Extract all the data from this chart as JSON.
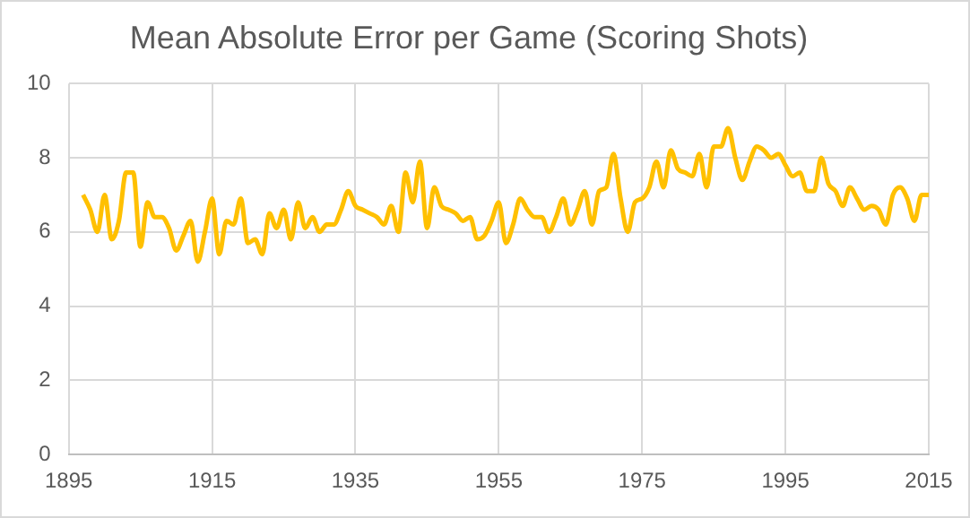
{
  "chart_data": {
    "type": "line",
    "title": "Mean Absolute Error per Game (Scoring Shots)",
    "x": [
      1897,
      1898,
      1899,
      1900,
      1901,
      1902,
      1903,
      1904,
      1905,
      1906,
      1907,
      1908,
      1909,
      1910,
      1911,
      1912,
      1913,
      1914,
      1915,
      1916,
      1917,
      1918,
      1919,
      1920,
      1921,
      1922,
      1923,
      1924,
      1925,
      1926,
      1927,
      1928,
      1929,
      1930,
      1931,
      1932,
      1933,
      1934,
      1935,
      1936,
      1937,
      1938,
      1939,
      1940,
      1941,
      1942,
      1943,
      1944,
      1945,
      1946,
      1947,
      1948,
      1949,
      1950,
      1951,
      1952,
      1953,
      1954,
      1955,
      1956,
      1957,
      1958,
      1959,
      1960,
      1961,
      1962,
      1963,
      1964,
      1965,
      1966,
      1967,
      1968,
      1969,
      1970,
      1971,
      1972,
      1973,
      1974,
      1975,
      1976,
      1977,
      1978,
      1979,
      1980,
      1981,
      1982,
      1983,
      1984,
      1985,
      1986,
      1987,
      1988,
      1989,
      1990,
      1991,
      1992,
      1993,
      1994,
      1995,
      1996,
      1997,
      1998,
      1999,
      2000,
      2001,
      2002,
      2003,
      2004,
      2005,
      2006,
      2007,
      2008,
      2009,
      2010,
      2011,
      2012,
      2013,
      2014,
      2015
    ],
    "series": [
      {
        "color": "#ffc000",
        "values": [
          7.0,
          6.6,
          6.0,
          7.0,
          5.8,
          6.3,
          7.6,
          7.6,
          5.6,
          6.8,
          6.4,
          6.4,
          6.1,
          5.5,
          5.9,
          6.3,
          5.2,
          6.0,
          6.9,
          5.4,
          6.3,
          6.2,
          6.9,
          5.7,
          5.8,
          5.4,
          6.5,
          6.1,
          6.6,
          5.8,
          6.8,
          6.1,
          6.4,
          6.0,
          6.2,
          6.2,
          6.6,
          7.1,
          6.7,
          6.6,
          6.5,
          6.4,
          6.2,
          6.7,
          6.0,
          7.6,
          6.8,
          7.9,
          6.1,
          7.2,
          6.7,
          6.6,
          6.5,
          6.3,
          6.4,
          5.8,
          5.9,
          6.3,
          6.8,
          5.7,
          6.2,
          6.9,
          6.6,
          6.4,
          6.4,
          6.0,
          6.4,
          6.9,
          6.2,
          6.6,
          7.1,
          6.2,
          7.1,
          7.2,
          8.1,
          6.9,
          6.0,
          6.8,
          6.9,
          7.2,
          7.9,
          7.2,
          8.2,
          7.7,
          7.6,
          7.5,
          8.1,
          7.2,
          8.3,
          8.3,
          8.8,
          8.0,
          7.4,
          7.9,
          8.3,
          8.2,
          8.0,
          8.1,
          7.8,
          7.5,
          7.6,
          7.1,
          7.1,
          8.0,
          7.3,
          7.1,
          6.7,
          7.2,
          6.9,
          6.6,
          6.7,
          6.6,
          6.2,
          7.0,
          7.2,
          6.9,
          6.3,
          7.0,
          7.0
        ]
      }
    ],
    "xlim": [
      1895,
      2015
    ],
    "xticks": [
      1895,
      1915,
      1935,
      1955,
      1975,
      1995,
      2015
    ],
    "ylim": [
      0,
      10
    ],
    "yticks": [
      0,
      2,
      4,
      6,
      8,
      10
    ],
    "grid": true,
    "marker": "none",
    "line_style": "solid",
    "legend": false
  }
}
